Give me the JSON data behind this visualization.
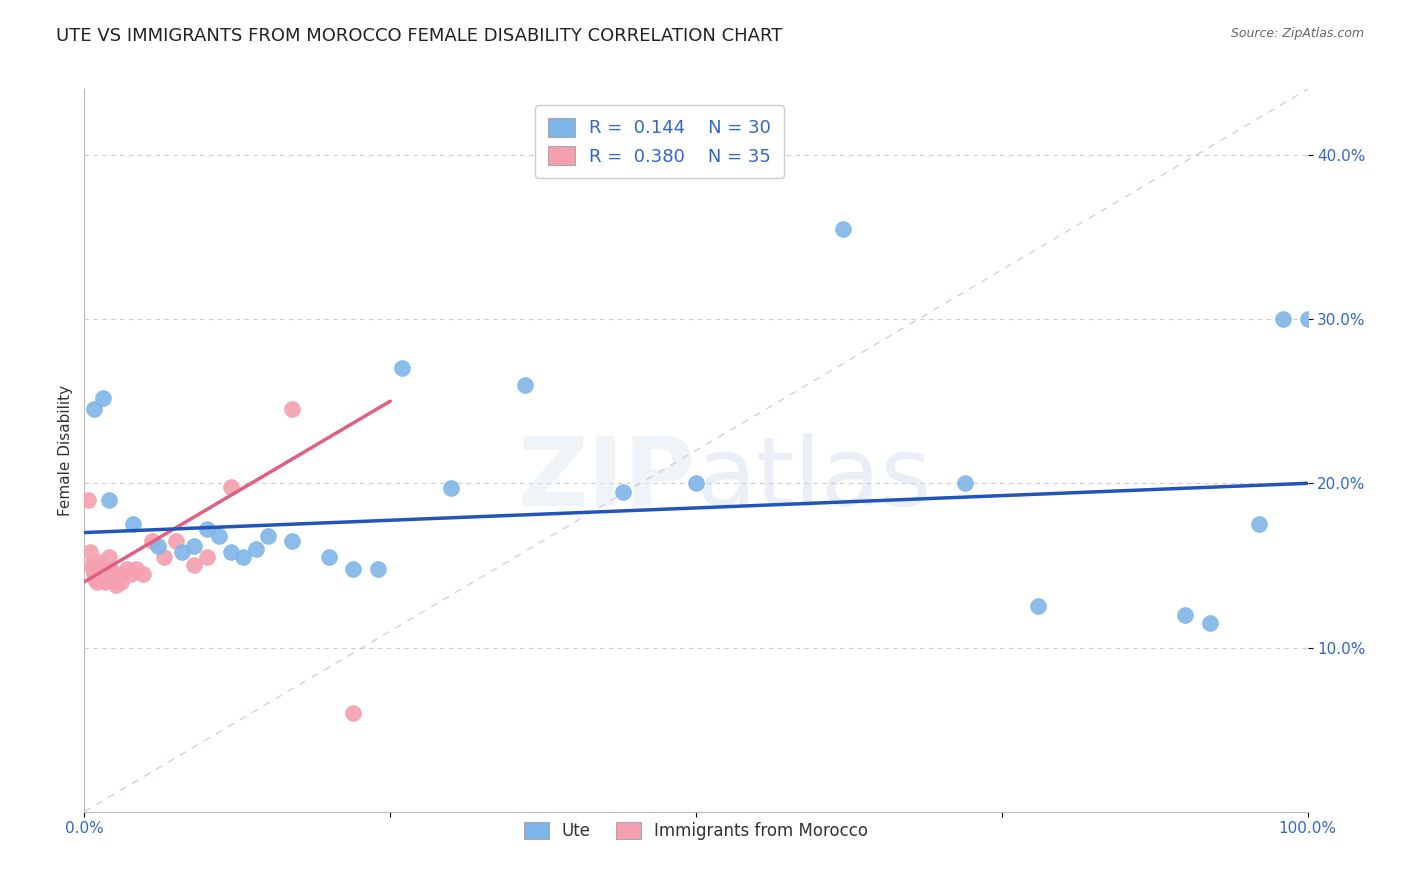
{
  "title": "UTE VS IMMIGRANTS FROM MOROCCO FEMALE DISABILITY CORRELATION CHART",
  "source": "Source: ZipAtlas.com",
  "ylabel": "Female Disability",
  "watermark": "ZIPatlas",
  "xlim": [
    0.0,
    1.0
  ],
  "ylim": [
    0.0,
    0.44
  ],
  "xticks": [
    0.0,
    0.25,
    0.5,
    0.75,
    1.0
  ],
  "xtick_labels": [
    "0.0%",
    "",
    "",
    "",
    "100.0%"
  ],
  "yticks": [
    0.1,
    0.2,
    0.3,
    0.4
  ],
  "ytick_labels": [
    "10.0%",
    "20.0%",
    "30.0%",
    "40.0%"
  ],
  "grid_color": "#cccccc",
  "background_color": "#ffffff",
  "ute_color": "#7EB5E8",
  "morocco_color": "#F4A0B0",
  "ute_line_color": "#2255BB",
  "morocco_line_color": "#E06080",
  "diag_line_color": "#D8C0C8",
  "legend_R_ute": "R =  0.144",
  "legend_N_ute": "N = 30",
  "legend_R_morocco": "R =  0.380",
  "legend_N_morocco": "N = 35",
  "ute_points_x": [
    0.008,
    0.015,
    0.02,
    0.04,
    0.06,
    0.08,
    0.09,
    0.1,
    0.11,
    0.12,
    0.13,
    0.14,
    0.15,
    0.17,
    0.2,
    0.22,
    0.24,
    0.26,
    0.3,
    0.36,
    0.44,
    0.5,
    0.62,
    0.72,
    0.78,
    0.9,
    0.92,
    0.96,
    0.98,
    1.0
  ],
  "ute_points_y": [
    0.245,
    0.252,
    0.19,
    0.175,
    0.162,
    0.158,
    0.162,
    0.172,
    0.168,
    0.158,
    0.155,
    0.16,
    0.168,
    0.165,
    0.155,
    0.148,
    0.148,
    0.27,
    0.197,
    0.26,
    0.195,
    0.2,
    0.355,
    0.2,
    0.125,
    0.12,
    0.115,
    0.175,
    0.3,
    0.3
  ],
  "morocco_points_x": [
    0.003,
    0.005,
    0.006,
    0.007,
    0.008,
    0.009,
    0.01,
    0.011,
    0.012,
    0.013,
    0.014,
    0.015,
    0.016,
    0.017,
    0.018,
    0.019,
    0.02,
    0.021,
    0.022,
    0.024,
    0.026,
    0.028,
    0.03,
    0.035,
    0.038,
    0.042,
    0.048,
    0.055,
    0.065,
    0.075,
    0.09,
    0.1,
    0.12,
    0.17,
    0.22
  ],
  "morocco_points_y": [
    0.19,
    0.158,
    0.15,
    0.148,
    0.145,
    0.142,
    0.14,
    0.148,
    0.152,
    0.148,
    0.145,
    0.145,
    0.142,
    0.14,
    0.145,
    0.148,
    0.155,
    0.148,
    0.145,
    0.14,
    0.138,
    0.145,
    0.14,
    0.148,
    0.145,
    0.148,
    0.145,
    0.165,
    0.155,
    0.165,
    0.15,
    0.155,
    0.198,
    0.245,
    0.06
  ],
  "ute_line_x": [
    0.0,
    1.0
  ],
  "ute_line_y": [
    0.17,
    0.2
  ],
  "morocco_line_x": [
    0.0,
    0.25
  ],
  "morocco_line_y": [
    0.14,
    0.25
  ],
  "title_fontsize": 13,
  "axis_label_fontsize": 11,
  "tick_fontsize": 11,
  "legend_fontsize": 13
}
